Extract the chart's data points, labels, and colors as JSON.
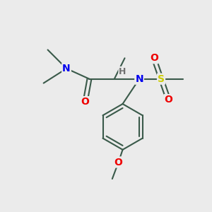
{
  "bg_color": "#ebebeb",
  "bond_color": "#3a5a4a",
  "bond_width": 1.5,
  "atom_colors": {
    "N": "#0000ee",
    "O": "#ee0000",
    "S": "#cccc00",
    "H": "#707070"
  },
  "font_size": 10,
  "fig_size": [
    3.0,
    3.0
  ],
  "dpi": 100
}
